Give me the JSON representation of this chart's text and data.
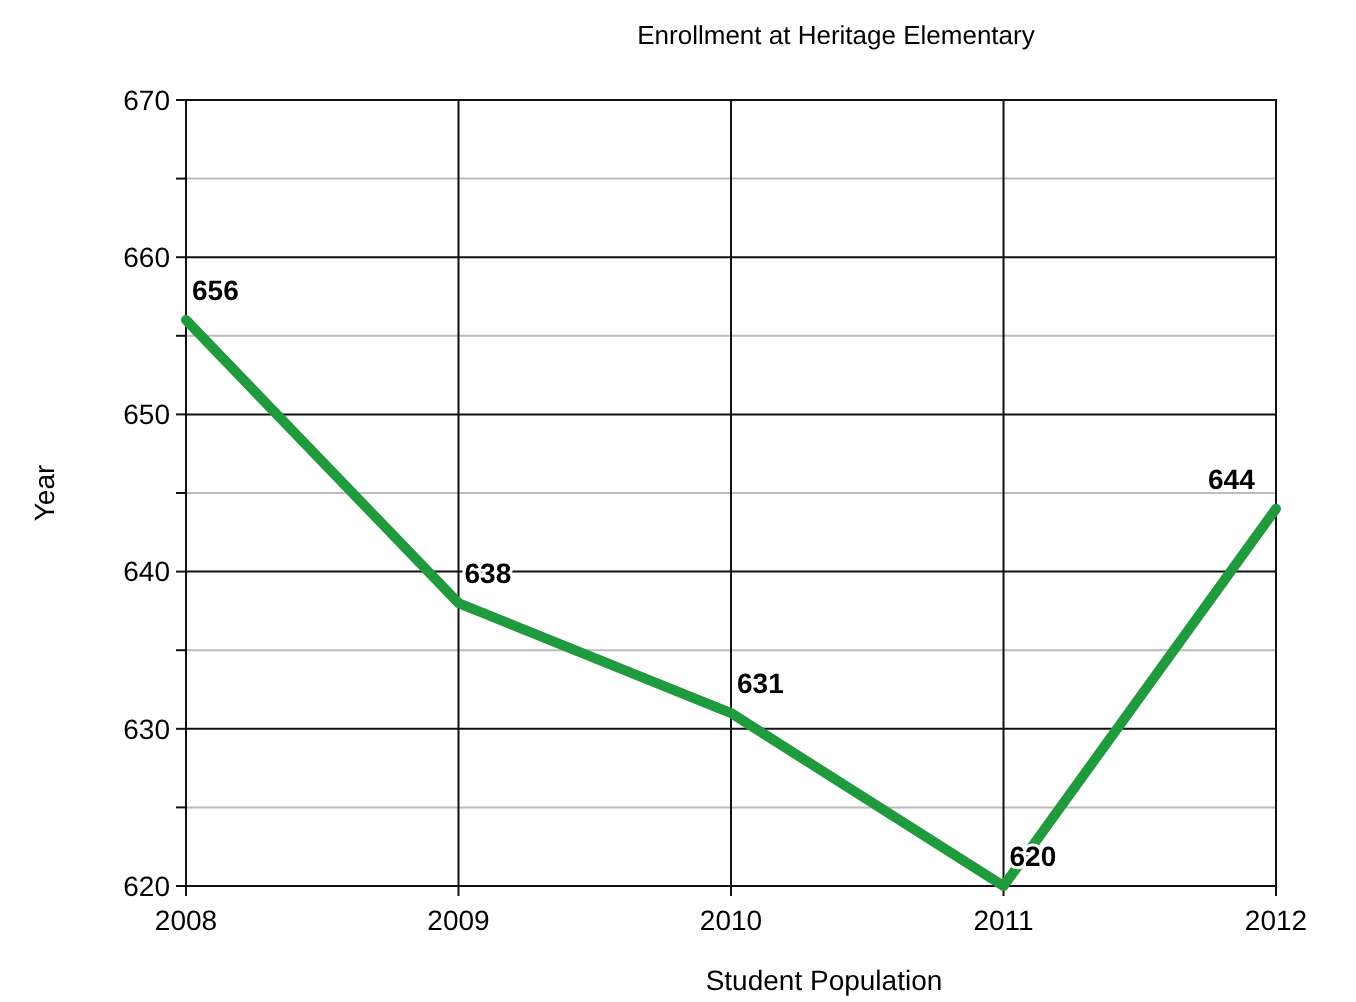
{
  "chart_data": {
    "type": "line",
    "title": "Enrollment at Heritage Elementary",
    "xlabel": "Student Population",
    "ylabel": "Year",
    "x": [
      2008,
      2009,
      2010,
      2011,
      2012
    ],
    "series": [
      {
        "color": "#1f9a3c",
        "values": [
          656,
          638,
          631,
          620,
          644
        ]
      }
    ],
    "xlim": [
      2008,
      2012
    ],
    "xticks": [
      2008,
      2009,
      2010,
      2011,
      2012
    ],
    "ylim": [
      620,
      670
    ],
    "yticks": [
      620,
      {
        "value": 625,
        "label": null
      },
      630,
      {
        "value": 635,
        "label": null
      },
      640,
      {
        "value": 645,
        "label": null
      },
      650,
      {
        "value": 655,
        "label": null
      },
      660,
      {
        "value": 665,
        "label": null
      },
      670
    ],
    "grid": true,
    "data_labels": true,
    "marker": "none",
    "line_style": "solid"
  }
}
